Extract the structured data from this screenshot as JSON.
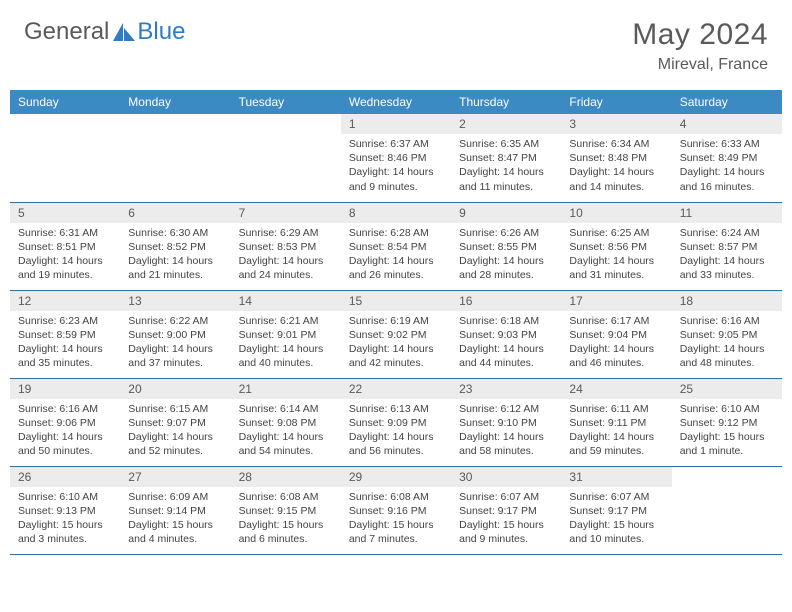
{
  "brand": {
    "general": "General",
    "blue": "Blue"
  },
  "title": "May 2024",
  "location": "Mireval, France",
  "colors": {
    "header_bg": "#3b8ac4",
    "header_text": "#ffffff",
    "daynum_bg": "#ececec",
    "daynum_text": "#5a5a5a",
    "border": "#2c6fa8",
    "body_text": "#444444",
    "title_text": "#5a5a5a",
    "brand_blue": "#2d7dc4"
  },
  "weekdays": [
    "Sunday",
    "Monday",
    "Tuesday",
    "Wednesday",
    "Thursday",
    "Friday",
    "Saturday"
  ],
  "weeks": [
    [
      {
        "day": "",
        "sunrise": "",
        "sunset": "",
        "daylight1": "",
        "daylight2": ""
      },
      {
        "day": "",
        "sunrise": "",
        "sunset": "",
        "daylight1": "",
        "daylight2": ""
      },
      {
        "day": "",
        "sunrise": "",
        "sunset": "",
        "daylight1": "",
        "daylight2": ""
      },
      {
        "day": "1",
        "sunrise": "Sunrise: 6:37 AM",
        "sunset": "Sunset: 8:46 PM",
        "daylight1": "Daylight: 14 hours",
        "daylight2": "and 9 minutes."
      },
      {
        "day": "2",
        "sunrise": "Sunrise: 6:35 AM",
        "sunset": "Sunset: 8:47 PM",
        "daylight1": "Daylight: 14 hours",
        "daylight2": "and 11 minutes."
      },
      {
        "day": "3",
        "sunrise": "Sunrise: 6:34 AM",
        "sunset": "Sunset: 8:48 PM",
        "daylight1": "Daylight: 14 hours",
        "daylight2": "and 14 minutes."
      },
      {
        "day": "4",
        "sunrise": "Sunrise: 6:33 AM",
        "sunset": "Sunset: 8:49 PM",
        "daylight1": "Daylight: 14 hours",
        "daylight2": "and 16 minutes."
      }
    ],
    [
      {
        "day": "5",
        "sunrise": "Sunrise: 6:31 AM",
        "sunset": "Sunset: 8:51 PM",
        "daylight1": "Daylight: 14 hours",
        "daylight2": "and 19 minutes."
      },
      {
        "day": "6",
        "sunrise": "Sunrise: 6:30 AM",
        "sunset": "Sunset: 8:52 PM",
        "daylight1": "Daylight: 14 hours",
        "daylight2": "and 21 minutes."
      },
      {
        "day": "7",
        "sunrise": "Sunrise: 6:29 AM",
        "sunset": "Sunset: 8:53 PM",
        "daylight1": "Daylight: 14 hours",
        "daylight2": "and 24 minutes."
      },
      {
        "day": "8",
        "sunrise": "Sunrise: 6:28 AM",
        "sunset": "Sunset: 8:54 PM",
        "daylight1": "Daylight: 14 hours",
        "daylight2": "and 26 minutes."
      },
      {
        "day": "9",
        "sunrise": "Sunrise: 6:26 AM",
        "sunset": "Sunset: 8:55 PM",
        "daylight1": "Daylight: 14 hours",
        "daylight2": "and 28 minutes."
      },
      {
        "day": "10",
        "sunrise": "Sunrise: 6:25 AM",
        "sunset": "Sunset: 8:56 PM",
        "daylight1": "Daylight: 14 hours",
        "daylight2": "and 31 minutes."
      },
      {
        "day": "11",
        "sunrise": "Sunrise: 6:24 AM",
        "sunset": "Sunset: 8:57 PM",
        "daylight1": "Daylight: 14 hours",
        "daylight2": "and 33 minutes."
      }
    ],
    [
      {
        "day": "12",
        "sunrise": "Sunrise: 6:23 AM",
        "sunset": "Sunset: 8:59 PM",
        "daylight1": "Daylight: 14 hours",
        "daylight2": "and 35 minutes."
      },
      {
        "day": "13",
        "sunrise": "Sunrise: 6:22 AM",
        "sunset": "Sunset: 9:00 PM",
        "daylight1": "Daylight: 14 hours",
        "daylight2": "and 37 minutes."
      },
      {
        "day": "14",
        "sunrise": "Sunrise: 6:21 AM",
        "sunset": "Sunset: 9:01 PM",
        "daylight1": "Daylight: 14 hours",
        "daylight2": "and 40 minutes."
      },
      {
        "day": "15",
        "sunrise": "Sunrise: 6:19 AM",
        "sunset": "Sunset: 9:02 PM",
        "daylight1": "Daylight: 14 hours",
        "daylight2": "and 42 minutes."
      },
      {
        "day": "16",
        "sunrise": "Sunrise: 6:18 AM",
        "sunset": "Sunset: 9:03 PM",
        "daylight1": "Daylight: 14 hours",
        "daylight2": "and 44 minutes."
      },
      {
        "day": "17",
        "sunrise": "Sunrise: 6:17 AM",
        "sunset": "Sunset: 9:04 PM",
        "daylight1": "Daylight: 14 hours",
        "daylight2": "and 46 minutes."
      },
      {
        "day": "18",
        "sunrise": "Sunrise: 6:16 AM",
        "sunset": "Sunset: 9:05 PM",
        "daylight1": "Daylight: 14 hours",
        "daylight2": "and 48 minutes."
      }
    ],
    [
      {
        "day": "19",
        "sunrise": "Sunrise: 6:16 AM",
        "sunset": "Sunset: 9:06 PM",
        "daylight1": "Daylight: 14 hours",
        "daylight2": "and 50 minutes."
      },
      {
        "day": "20",
        "sunrise": "Sunrise: 6:15 AM",
        "sunset": "Sunset: 9:07 PM",
        "daylight1": "Daylight: 14 hours",
        "daylight2": "and 52 minutes."
      },
      {
        "day": "21",
        "sunrise": "Sunrise: 6:14 AM",
        "sunset": "Sunset: 9:08 PM",
        "daylight1": "Daylight: 14 hours",
        "daylight2": "and 54 minutes."
      },
      {
        "day": "22",
        "sunrise": "Sunrise: 6:13 AM",
        "sunset": "Sunset: 9:09 PM",
        "daylight1": "Daylight: 14 hours",
        "daylight2": "and 56 minutes."
      },
      {
        "day": "23",
        "sunrise": "Sunrise: 6:12 AM",
        "sunset": "Sunset: 9:10 PM",
        "daylight1": "Daylight: 14 hours",
        "daylight2": "and 58 minutes."
      },
      {
        "day": "24",
        "sunrise": "Sunrise: 6:11 AM",
        "sunset": "Sunset: 9:11 PM",
        "daylight1": "Daylight: 14 hours",
        "daylight2": "and 59 minutes."
      },
      {
        "day": "25",
        "sunrise": "Sunrise: 6:10 AM",
        "sunset": "Sunset: 9:12 PM",
        "daylight1": "Daylight: 15 hours",
        "daylight2": "and 1 minute."
      }
    ],
    [
      {
        "day": "26",
        "sunrise": "Sunrise: 6:10 AM",
        "sunset": "Sunset: 9:13 PM",
        "daylight1": "Daylight: 15 hours",
        "daylight2": "and 3 minutes."
      },
      {
        "day": "27",
        "sunrise": "Sunrise: 6:09 AM",
        "sunset": "Sunset: 9:14 PM",
        "daylight1": "Daylight: 15 hours",
        "daylight2": "and 4 minutes."
      },
      {
        "day": "28",
        "sunrise": "Sunrise: 6:08 AM",
        "sunset": "Sunset: 9:15 PM",
        "daylight1": "Daylight: 15 hours",
        "daylight2": "and 6 minutes."
      },
      {
        "day": "29",
        "sunrise": "Sunrise: 6:08 AM",
        "sunset": "Sunset: 9:16 PM",
        "daylight1": "Daylight: 15 hours",
        "daylight2": "and 7 minutes."
      },
      {
        "day": "30",
        "sunrise": "Sunrise: 6:07 AM",
        "sunset": "Sunset: 9:17 PM",
        "daylight1": "Daylight: 15 hours",
        "daylight2": "and 9 minutes."
      },
      {
        "day": "31",
        "sunrise": "Sunrise: 6:07 AM",
        "sunset": "Sunset: 9:17 PM",
        "daylight1": "Daylight: 15 hours",
        "daylight2": "and 10 minutes."
      },
      {
        "day": "",
        "sunrise": "",
        "sunset": "",
        "daylight1": "",
        "daylight2": ""
      }
    ]
  ]
}
